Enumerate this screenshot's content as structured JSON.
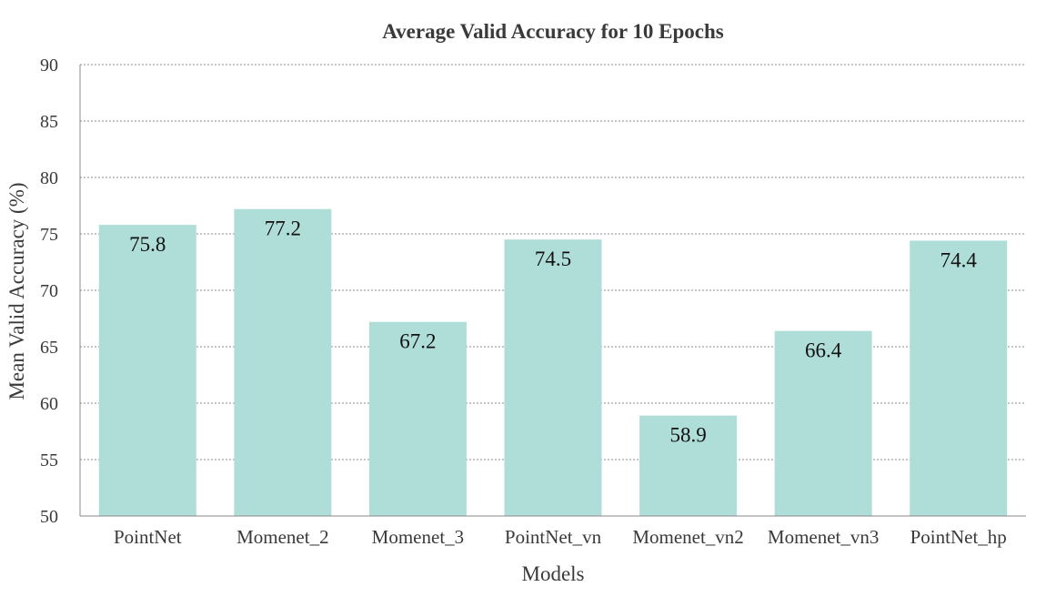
{
  "chart_data": {
    "type": "bar",
    "title": "Average Valid Accuracy for 10 Epochs",
    "xlabel": "Models",
    "ylabel": "Mean Valid Accuracy (%)",
    "ylim": [
      50,
      90
    ],
    "yticks": [
      50,
      55,
      60,
      65,
      70,
      75,
      80,
      85,
      90
    ],
    "grid": true,
    "categories": [
      "PointNet",
      "Momenet_2",
      "Momenet_3",
      "PointNet_vn",
      "Momenet_vn2",
      "Momenet_vn3",
      "PointNet_hp"
    ],
    "values": [
      75.8,
      77.2,
      67.2,
      74.5,
      58.9,
      66.4,
      74.4
    ],
    "data_labels": [
      "75.8",
      "77.2",
      "67.2",
      "74.5",
      "58.9",
      "66.4",
      "74.4"
    ],
    "bar_color": "#afddd8"
  }
}
